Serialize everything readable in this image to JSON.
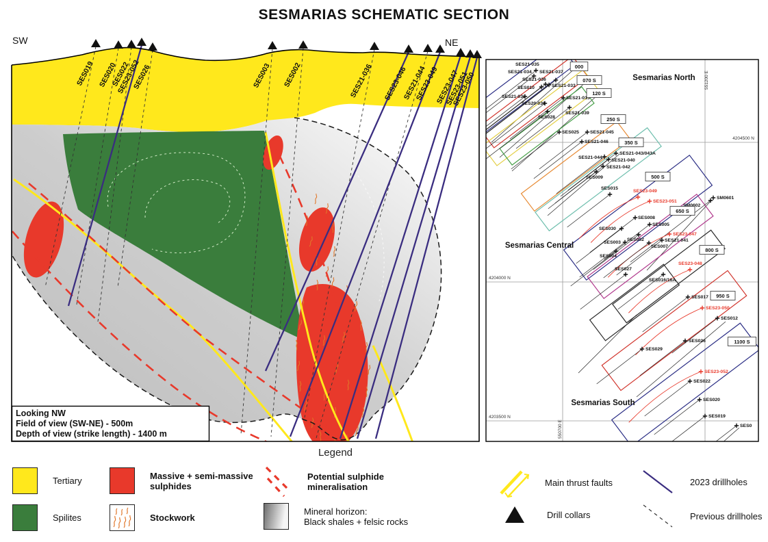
{
  "title": "SESMARIAS SCHEMATIC SECTION",
  "section_panel": {
    "left_direction": "SW",
    "right_direction": "NE",
    "notes": [
      "Looking NW",
      "Field of view (SW-NE) - 500m",
      "Depth of view (strike length) - 1400 m"
    ],
    "drillholes": [
      {
        "name": "SES019",
        "type": "previous"
      },
      {
        "name": "SES020",
        "type": "previous"
      },
      {
        "name": "SES022",
        "type": "previous"
      },
      {
        "name": "SES23-052",
        "type": "2023"
      },
      {
        "name": "SES026",
        "type": "previous"
      },
      {
        "name": "SES003",
        "type": "previous"
      },
      {
        "name": "SES002",
        "type": "previous"
      },
      {
        "name": "SES21-036",
        "type": "previous"
      },
      {
        "name": "SES23-046",
        "type": "2023"
      },
      {
        "name": "SES21-044",
        "type": "previous"
      },
      {
        "name": "SES23-049",
        "type": "2023"
      },
      {
        "name": "SES23-047",
        "type": "2023"
      },
      {
        "name": "SES23-051",
        "type": "2023"
      },
      {
        "name": "SES23-050",
        "type": "2023"
      }
    ]
  },
  "map_panel": {
    "region_labels": [
      "Sesmarias North",
      "Sesmarias Central",
      "Sesmarias South"
    ],
    "grid": {
      "northings": [
        "4204500 N",
        "4204000 N",
        "4203500 N"
      ],
      "eastings": [
        "551200 E",
        "550700 E"
      ]
    },
    "section_lines": [
      "000",
      "070 S",
      "120 S",
      "250 S",
      "350 S",
      "500 S",
      "650 S",
      "800 S",
      "950 S",
      "1100 S"
    ],
    "holes": [
      {
        "name": "SES21-035"
      },
      {
        "name": "SES21-034"
      },
      {
        "name": "SES21-037"
      },
      {
        "name": "SES21-036"
      },
      {
        "name": "SES010"
      },
      {
        "name": "SES21-033"
      },
      {
        "name": "SES21-032"
      },
      {
        "name": "SES20-031"
      },
      {
        "name": "SES21-015"
      },
      {
        "name": "SES21-039"
      },
      {
        "name": "SES028"
      },
      {
        "name": "SES025"
      },
      {
        "name": "SES21-045"
      },
      {
        "name": "SES21-046"
      },
      {
        "name": "SES21-043/043A"
      },
      {
        "name": "SES21-044"
      },
      {
        "name": "SES21-040"
      },
      {
        "name": "SES21-042"
      },
      {
        "name": "SES009"
      },
      {
        "name": "SES015"
      },
      {
        "name": "SES23-049",
        "highlight": true
      },
      {
        "name": "SES23-051",
        "highlight": true
      },
      {
        "name": "SM0601"
      },
      {
        "name": "SM0602"
      },
      {
        "name": "SES008"
      },
      {
        "name": "SES005"
      },
      {
        "name": "SES030"
      },
      {
        "name": "SES23-047",
        "highlight": true
      },
      {
        "name": "SES002"
      },
      {
        "name": "SES21-041"
      },
      {
        "name": "SES003"
      },
      {
        "name": "SES007"
      },
      {
        "name": "SES004"
      },
      {
        "name": "SES027"
      },
      {
        "name": "SES23-048",
        "highlight": true
      },
      {
        "name": "SES016/16A"
      },
      {
        "name": "SES017"
      },
      {
        "name": "SES23-050",
        "highlight": true
      },
      {
        "name": "SES012"
      },
      {
        "name": "SES026"
      },
      {
        "name": "SES029"
      },
      {
        "name": "SES23-052",
        "highlight": true
      },
      {
        "name": "SES022"
      },
      {
        "name": "SES020"
      },
      {
        "name": "SES019"
      },
      {
        "name": "SES0"
      }
    ]
  },
  "legend": {
    "title": "Legend",
    "items": [
      {
        "label": "Tertiary"
      },
      {
        "label": "Spilites"
      },
      {
        "label": "Massive + semi-massive",
        "label2": "sulphides"
      },
      {
        "label": "Stockwork"
      },
      {
        "label": "Potential sulphide",
        "label2": "mineralisation"
      },
      {
        "label": "Mineral horizon:",
        "label2": "Black shales + felsic rocks"
      },
      {
        "label": "Main thrust faults"
      },
      {
        "label": "Drill collars"
      },
      {
        "label": "2023 drillholes"
      },
      {
        "label": "Previous drillholes"
      }
    ]
  },
  "colors": {
    "tertiary": "#ffe81c",
    "spilites": "#3a7d3c",
    "sulphides": "#e8392b",
    "stockwork": "#e0762a",
    "mineral_horizon": "#c6c6c6",
    "thrust_fault": "#ffe81c",
    "drillholes_2023": "#3a2d80",
    "previous_drillholes": "#333333"
  }
}
